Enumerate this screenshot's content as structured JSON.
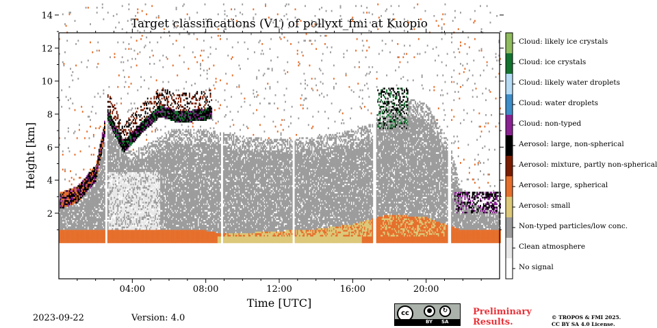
{
  "chart_data": {
    "type": "heatmap",
    "title": "Target classifications (V1) of pollyxt_fmi at Kuopio",
    "xlabel": "Time [UTC]",
    "ylabel": "Height [km]",
    "xlim": [
      0,
      24
    ],
    "ylim": [
      0.1,
      15
    ],
    "x_ticks": [
      {
        "value": 4,
        "label": "04:00"
      },
      {
        "value": 8,
        "label": "08:00"
      },
      {
        "value": 12,
        "label": "12:00"
      },
      {
        "value": 16,
        "label": "16:00"
      },
      {
        "value": 20,
        "label": "20:00"
      }
    ],
    "y_ticks": [
      2,
      4,
      6,
      8,
      10,
      12,
      14
    ],
    "classes": [
      {
        "id": 0,
        "label": "No signal",
        "color": "#ffffff"
      },
      {
        "id": 1,
        "label": "Clean atmosphere",
        "color": "#e8e8e8"
      },
      {
        "id": 2,
        "label": "Non-typed particles/low conc.",
        "color": "#9c9c9c"
      },
      {
        "id": 3,
        "label": "Aerosol: small",
        "color": "#dcc878"
      },
      {
        "id": 4,
        "label": "Aerosol: large, spherical",
        "color": "#e66f2c"
      },
      {
        "id": 5,
        "label": "Aerosol: mixture, partly non-spherical",
        "color": "#7a1c00"
      },
      {
        "id": 6,
        "label": "Aerosol: large, non-spherical",
        "color": "#000000"
      },
      {
        "id": 7,
        "label": "Cloud: non-typed",
        "color": "#8a2292"
      },
      {
        "id": 8,
        "label": "Cloud: water droplets",
        "color": "#3d8ec9"
      },
      {
        "id": 9,
        "label": "Cloud: likely water droplets",
        "color": "#b5dbf5"
      },
      {
        "id": 10,
        "label": "Cloud: ice crystals",
        "color": "#12742e"
      },
      {
        "id": 11,
        "label": "Cloud: likely ice crystals",
        "color": "#8fbc5c"
      }
    ],
    "regions": {
      "non_typed_top_km": [
        [
          0,
          2.9
        ],
        [
          1,
          3.3
        ],
        [
          2,
          4.6
        ],
        [
          2.6,
          8.0
        ],
        [
          4,
          5.6
        ],
        [
          6,
          7.0
        ],
        [
          8,
          7.0
        ],
        [
          10,
          6.6
        ],
        [
          12,
          6.4
        ],
        [
          14,
          6.6
        ],
        [
          16,
          7.0
        ],
        [
          17,
          7.4
        ],
        [
          18,
          9.2
        ],
        [
          20,
          8.6
        ],
        [
          21.2,
          6.4
        ],
        [
          22,
          3.0
        ],
        [
          24,
          2.2
        ]
      ],
      "surface_aerosol_top_km": [
        [
          0,
          0.9
        ],
        [
          8,
          0.9
        ],
        [
          9,
          0.7
        ],
        [
          14,
          1.0
        ],
        [
          16,
          1.3
        ],
        [
          18,
          1.9
        ],
        [
          20,
          1.7
        ],
        [
          21,
          1.3
        ],
        [
          22,
          0.9
        ],
        [
          24,
          0.9
        ]
      ],
      "cirrus_layer_base_km": [
        [
          2.6,
          7.6
        ],
        [
          3.5,
          5.6
        ],
        [
          4.5,
          6.8
        ],
        [
          5.5,
          7.8
        ],
        [
          6.5,
          7.4
        ],
        [
          8,
          7.6
        ]
      ],
      "data_gaps_utc": [
        2.55,
        8.85,
        12.75,
        17.15,
        21.25
      ]
    }
  },
  "footer": {
    "date": "2023-09-22",
    "version": "Version: 4.0",
    "cc_by": "BY",
    "cc_sa": "SA",
    "preliminary_line1": "Preliminary",
    "preliminary_line2": "Results.",
    "copyright_line1": "© TROPOS & FMI 2025.",
    "copyright_line2": "CC BY SA 4.0 License.",
    "license_icon": "cc-by-sa-license-icon"
  }
}
